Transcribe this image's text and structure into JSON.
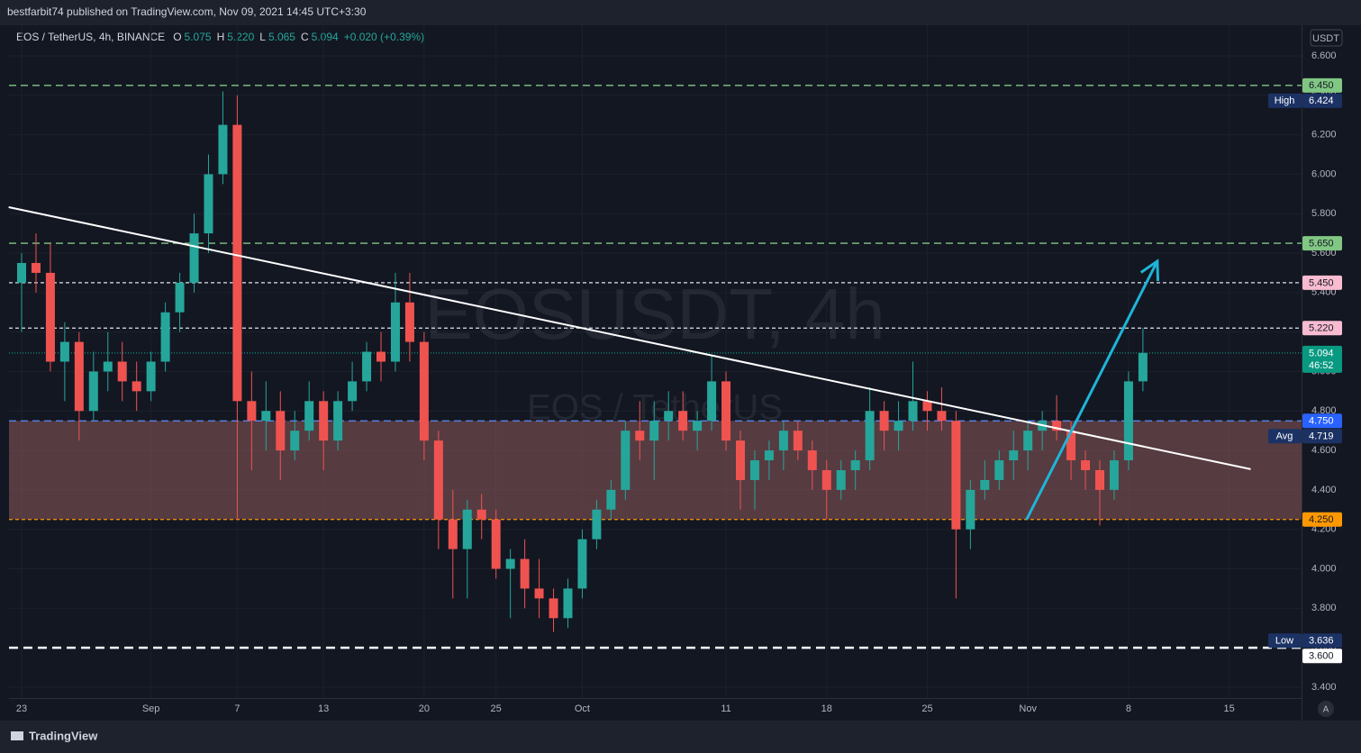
{
  "header": {
    "published": "bestfarbit74 published on TradingView.com, Nov 09, 2021 14:45 UTC+3:30",
    "symbol": "EOS / TetherUS, 4h, BINANCE",
    "ohlc": [
      {
        "key": "O",
        "value": "5.075"
      },
      {
        "key": "H",
        "value": "5.220"
      },
      {
        "key": "L",
        "value": "5.065"
      },
      {
        "key": "C",
        "value": "5.094"
      }
    ],
    "change": "+0.020 (+0.39%)",
    "currency": "USDT",
    "auto": "A",
    "logo": "TradingView"
  },
  "chart_data": {
    "type": "candlestick",
    "watermark": "EOSUSDT, 4h",
    "watermark_sub": "EOS / TetherUS",
    "up_color": "#26a69a",
    "down_color": "#ef5350",
    "categories": [
      "23",
      null,
      null,
      null,
      null,
      null,
      null,
      null,
      null,
      "Sep",
      null,
      null,
      null,
      null,
      null,
      "7",
      null,
      null,
      null,
      null,
      null,
      "13",
      null,
      null,
      null,
      null,
      null,
      null,
      "20",
      null,
      null,
      null,
      null,
      "25",
      null,
      null,
      null,
      null,
      null,
      "Oct",
      null,
      null,
      null,
      null,
      null,
      null,
      null,
      null,
      null,
      "11",
      null,
      null,
      null,
      null,
      null,
      null,
      "18",
      null,
      null,
      null,
      null,
      null,
      null,
      "25",
      null,
      null,
      null,
      null,
      null,
      null,
      "Nov",
      null,
      null,
      null,
      null,
      null,
      null,
      "8",
      null,
      null,
      null,
      null,
      null,
      null,
      "15",
      null,
      null,
      null,
      null,
      null
    ],
    "open": [
      5.45,
      5.55,
      5.5,
      5.05,
      5.15,
      4.8,
      5.0,
      5.05,
      4.95,
      4.9,
      5.05,
      5.3,
      5.45,
      5.7,
      6.0,
      6.25,
      4.85,
      4.75,
      4.8,
      4.6,
      4.7,
      4.85,
      4.65,
      4.85,
      4.95,
      5.1,
      5.05,
      5.35,
      5.15,
      4.65,
      4.25,
      4.1,
      4.3,
      4.25,
      4.0,
      4.05,
      3.9,
      3.85,
      3.75,
      3.9,
      4.15,
      4.3,
      4.4,
      4.7,
      4.65,
      4.75,
      4.8,
      4.7,
      4.75,
      4.95,
      4.65,
      4.45,
      4.55,
      4.6,
      4.7,
      4.6,
      4.5,
      4.4,
      4.5,
      4.55,
      4.8,
      4.7,
      4.75,
      4.85,
      4.8,
      4.75,
      4.2,
      4.4,
      4.45,
      4.55,
      4.6,
      4.7,
      4.75,
      4.7,
      4.55,
      4.5,
      4.4,
      4.55,
      4.95,
      null,
      null,
      null,
      null,
      null,
      null,
      null,
      null,
      null,
      null,
      null
    ],
    "high": [
      5.6,
      5.7,
      5.65,
      5.25,
      5.2,
      5.1,
      5.2,
      5.15,
      5.05,
      5.1,
      5.35,
      5.5,
      5.8,
      6.1,
      6.42,
      6.4,
      5.0,
      4.95,
      4.9,
      4.8,
      4.95,
      4.9,
      4.9,
      5.05,
      5.15,
      5.2,
      5.5,
      5.5,
      5.2,
      4.7,
      4.4,
      4.35,
      4.38,
      4.3,
      4.1,
      4.15,
      4.05,
      3.9,
      3.95,
      4.2,
      4.35,
      4.45,
      4.75,
      4.85,
      4.85,
      4.9,
      4.9,
      4.8,
      5.08,
      5.0,
      4.7,
      4.6,
      4.65,
      4.75,
      4.75,
      4.65,
      4.55,
      4.55,
      4.6,
      4.92,
      4.85,
      4.85,
      5.05,
      4.9,
      4.92,
      4.8,
      4.45,
      4.55,
      4.6,
      4.7,
      4.75,
      4.8,
      4.88,
      4.75,
      4.6,
      4.55,
      4.6,
      5.0,
      5.22,
      null,
      null,
      null,
      null,
      null,
      null,
      null,
      null,
      null,
      null,
      null
    ],
    "low": [
      5.2,
      5.4,
      5.0,
      4.85,
      4.65,
      4.75,
      4.9,
      4.85,
      4.8,
      4.85,
      5.0,
      5.2,
      5.4,
      5.6,
      5.95,
      4.25,
      4.5,
      4.6,
      4.45,
      4.55,
      4.65,
      4.5,
      4.6,
      4.8,
      4.9,
      4.95,
      5.0,
      5.05,
      4.55,
      4.1,
      3.85,
      3.85,
      4.15,
      3.95,
      3.75,
      3.8,
      3.75,
      3.68,
      3.7,
      3.85,
      4.1,
      4.25,
      4.35,
      4.55,
      4.45,
      4.65,
      4.65,
      4.6,
      4.7,
      4.6,
      4.3,
      4.3,
      4.45,
      4.5,
      4.55,
      4.4,
      4.25,
      4.35,
      4.4,
      4.5,
      4.6,
      4.6,
      4.7,
      4.7,
      4.7,
      3.85,
      4.1,
      4.35,
      4.4,
      4.45,
      4.5,
      4.6,
      4.65,
      4.45,
      4.4,
      4.22,
      4.35,
      4.5,
      4.9,
      null,
      null,
      null,
      null,
      null,
      null,
      null,
      null,
      null,
      null,
      null
    ],
    "close": [
      5.55,
      5.5,
      5.05,
      5.15,
      4.8,
      5.0,
      5.05,
      4.95,
      4.9,
      5.05,
      5.3,
      5.45,
      5.7,
      6.0,
      6.25,
      4.85,
      4.75,
      4.8,
      4.6,
      4.7,
      4.85,
      4.65,
      4.85,
      4.95,
      5.1,
      5.05,
      5.35,
      5.15,
      4.65,
      4.25,
      4.1,
      4.3,
      4.25,
      4.0,
      4.05,
      3.9,
      3.85,
      3.75,
      3.9,
      4.15,
      4.3,
      4.4,
      4.7,
      4.65,
      4.75,
      4.8,
      4.7,
      4.75,
      4.95,
      4.65,
      4.45,
      4.55,
      4.6,
      4.7,
      4.6,
      4.5,
      4.4,
      4.5,
      4.55,
      4.8,
      4.7,
      4.75,
      4.85,
      4.8,
      4.75,
      4.2,
      4.4,
      4.45,
      4.55,
      4.6,
      4.7,
      4.75,
      4.7,
      4.55,
      4.5,
      4.4,
      4.55,
      4.95,
      5.094,
      null,
      null,
      null,
      null,
      null,
      null,
      null,
      null,
      null,
      null,
      null
    ],
    "ylim": [
      3.345,
      6.755
    ],
    "yticks": [
      {
        "value": 3.4,
        "label": "3.400"
      },
      {
        "value": 3.6,
        "label": "3.600"
      },
      {
        "value": 3.8,
        "label": "3.800"
      },
      {
        "value": 4.0,
        "label": "4.000"
      },
      {
        "value": 4.2,
        "label": "4.200"
      },
      {
        "value": 4.4,
        "label": "4.400"
      },
      {
        "value": 4.6,
        "label": "4.600"
      },
      {
        "value": 4.8,
        "label": "4.800"
      },
      {
        "value": 5.0,
        "label": "5.000"
      },
      {
        "value": 5.2,
        "label": "5.200"
      },
      {
        "value": 5.4,
        "label": "5.400"
      },
      {
        "value": 5.6,
        "label": "5.600"
      },
      {
        "value": 5.8,
        "label": "5.800"
      },
      {
        "value": 6.0,
        "label": "6.000"
      },
      {
        "value": 6.2,
        "label": "6.200"
      },
      {
        "value": 6.4,
        "label": "6.400"
      },
      {
        "value": 6.6,
        "label": "6.600"
      }
    ],
    "grid": true,
    "zone": {
      "from": 4.25,
      "to": 4.75,
      "color": "rgba(178,110,110,0.42)"
    },
    "levels": [
      {
        "value": 6.45,
        "label": "6.450",
        "color": "#81c784",
        "line": "dash",
        "text_color": "#131722"
      },
      {
        "value": 6.424,
        "label": "6.424",
        "name": "High",
        "color": "#1c3264",
        "line": "none",
        "text_color": "#ffffff"
      },
      {
        "value": 5.65,
        "label": "5.650",
        "color": "#81c784",
        "line": "dash",
        "text_color": "#131722"
      },
      {
        "value": 5.45,
        "label": "5.450",
        "color": "#f8bbd0",
        "line": "dot",
        "text_color": "#131722",
        "line_color": "#e0e3eb"
      },
      {
        "value": 5.22,
        "label": "5.220",
        "color": "#f8bbd0",
        "line": "dot",
        "text_color": "#131722",
        "line_color": "#e0e3eb"
      },
      {
        "value": 5.094,
        "label": "5.094",
        "timer": "46:52",
        "color": "#089981",
        "line": "fine",
        "text_color": "#ffffff"
      },
      {
        "value": 4.75,
        "label": "4.750",
        "color": "#2962ff",
        "line": "dash",
        "text_color": "#ffffff",
        "line_color": "#5b8cff"
      },
      {
        "value": 4.719,
        "label": "4.719",
        "name": "Avg",
        "color": "#1c3264",
        "line": "none",
        "text_color": "#ffffff"
      },
      {
        "value": 4.25,
        "label": "4.250",
        "color": "#ff9800",
        "line": "dot",
        "text_color": "#131722"
      },
      {
        "value": 3.636,
        "label": "3.636",
        "name": "Low",
        "color": "#1c3264",
        "line": "none",
        "text_color": "#ffffff"
      },
      {
        "value": 3.6,
        "label": "3.600",
        "color": "#ffffff",
        "line": "thick",
        "text_color": "#131722"
      }
    ],
    "trendline": {
      "x": [
        -0.9,
        85.5
      ],
      "y": [
        5.833,
        4.505
      ],
      "color": "#ffffff"
    },
    "arrow": {
      "x": [
        69.9,
        79.0
      ],
      "y": [
        4.249,
        5.559
      ],
      "color": "#1fb4d8"
    }
  }
}
